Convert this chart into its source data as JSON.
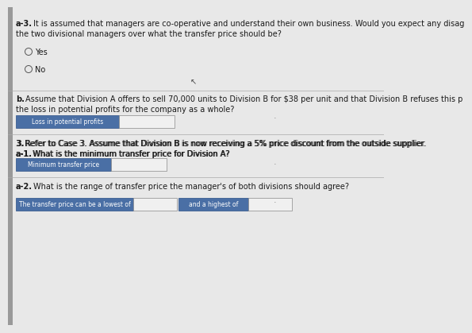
{
  "bg_color": "#c8c8c8",
  "content_bg": "#e0e0e0",
  "page_bg": "#e8e8e8",
  "text_color": "#1a1a1a",
  "blue_label_color": "#4a6fa5",
  "input_box_color": "#f0f0f0",
  "input_box_border": "#888888",
  "left_bar_color": "#999999",
  "section_a3_bold": "a-3.",
  "section_a3_line1": "It is assumed that managers are co-operative and understand their own business. Would you expect any disag",
  "section_a3_line2": "the two divisional managers over what the transfer price should be?",
  "radio_yes": "Yes",
  "radio_no": "No",
  "section_b_bold": "b.",
  "section_b_line1": "Assume that Division A offers to sell 70,000 units to Division B for $38 per unit and that Division B refuses this p",
  "section_b_line2": "the loss in potential profits for the company as a whole?",
  "field_b_label": "Loss in potential profits",
  "section_3_line1": "3. Refer to Case 3. Assume that Division B is now receiving a 5% price discount from the outside supplier.",
  "section_3_line2": "a-1. What is the minimum transfer price for Division A?",
  "section_3_bold": "3.",
  "field_3_label": "Minimum transfer price",
  "section_a2_bold": "a-2.",
  "section_a2_text": "What is the range of transfer price the manager's of both divisions should agree?",
  "field_a2_label1": "The transfer price can be a lowest of",
  "field_a2_label2": "and a highest of",
  "font_size_body": 7.0,
  "font_size_label": 6.0,
  "font_size_field": 5.5
}
